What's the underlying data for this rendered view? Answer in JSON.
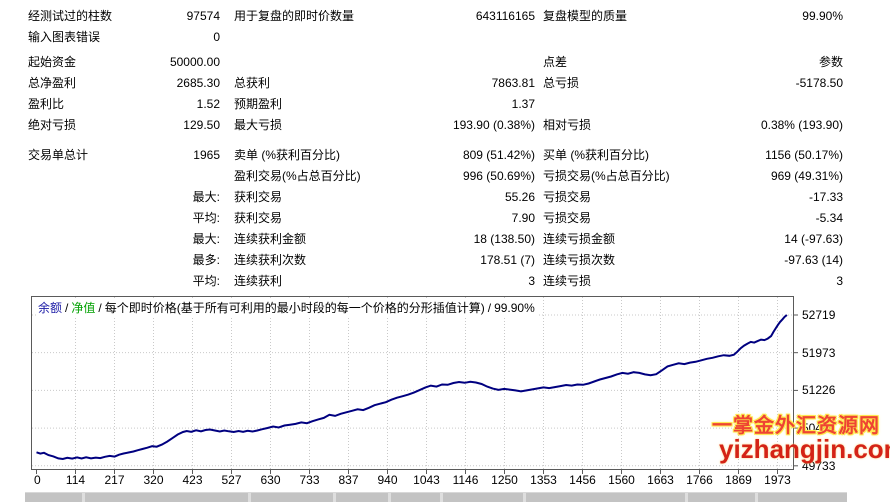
{
  "stats": {
    "rows": [
      {
        "a": "经测试过的柱数",
        "av": "97574",
        "b": "用于复盘的即时价数量",
        "bv": "643116165",
        "c": "复盘模型的质量",
        "cv": "99.90%",
        "gap": 0
      },
      {
        "a": "输入图表错误",
        "av": "0",
        "b": "",
        "bv": "",
        "c": "",
        "cv": "",
        "gap": 0
      },
      {
        "a": "起始资金",
        "av": "50000.00",
        "b": "",
        "bv": "",
        "c": "点差",
        "cv": "参数",
        "gap": 4
      },
      {
        "a": "总净盈利",
        "av": "2685.30",
        "b": "总获利",
        "bv": "7863.81",
        "c": "总亏损",
        "cv": "-5178.50",
        "gap": 0
      },
      {
        "a": "盈利比",
        "av": "1.52",
        "b": "预期盈利",
        "bv": "1.37",
        "c": "",
        "cv": "",
        "gap": 0
      },
      {
        "a": "绝对亏损",
        "av": "129.50",
        "b": "最大亏损",
        "bv": "193.90 (0.38%)",
        "c": "相对亏损",
        "cv": "0.38% (193.90)",
        "gap": 0
      },
      {
        "a": "交易单总计",
        "av": "1965",
        "b": "卖单 (%获利百分比)",
        "bv": "809 (51.42%)",
        "c": "买单 (%获利百分比)",
        "cv": "1156 (50.17%)",
        "gap": 9
      },
      {
        "a": "",
        "av": "",
        "b": "盈利交易(%占总百分比)",
        "bv": "996 (50.69%)",
        "c": "亏损交易(%占总百分比)",
        "cv": "969 (49.31%)",
        "gap": 0
      },
      {
        "a": "",
        "av": "最大:",
        "b": "获利交易",
        "bv": "55.26",
        "c": "亏损交易",
        "cv": "-17.33",
        "gap": 0
      },
      {
        "a": "",
        "av": "平均:",
        "b": "获利交易",
        "bv": "7.90",
        "c": "亏损交易",
        "cv": "-5.34",
        "gap": 0
      },
      {
        "a": "",
        "av": "最大:",
        "b": "连续获利金额",
        "bv": "18 (138.50)",
        "c": "连续亏损金额",
        "cv": "14 (-97.63)",
        "gap": 0
      },
      {
        "a": "",
        "av": "最多:",
        "b": "连续获利次数",
        "bv": "178.51 (7)",
        "c": "连续亏损次数",
        "cv": "-97.63 (14)",
        "gap": 0
      },
      {
        "a": "",
        "av": "平均:",
        "b": "连续获利",
        "bv": "3",
        "c": "连续亏损",
        "cv": "3",
        "gap": 0
      }
    ]
  },
  "chart": {
    "legend": {
      "balance": "余额",
      "equity": "净值",
      "desc": "每个即时价格(基于所有可利用的最小时段的每一个价格的分形插值计算)",
      "quality": "99.90%",
      "sep": "/",
      "balance_color": "#1a1aa6",
      "equity_color": "#00a000"
    },
    "watermark": {
      "line1": "一掌金外汇资源网",
      "line2": "yizhangjin.com",
      "color1": "#ee4433",
      "color2": "#d42316"
    }
  },
  "chart_data": {
    "type": "line",
    "title": "",
    "xlabel": "",
    "ylabel": "",
    "grid": "dotted",
    "legend_position": "top-left",
    "x_ticks": [
      0,
      114,
      217,
      320,
      423,
      527,
      630,
      733,
      837,
      940,
      1043,
      1146,
      1250,
      1353,
      1456,
      1560,
      1663,
      1766,
      1869,
      1973
    ],
    "y_ticks": [
      49733,
      50480,
      51226,
      51973,
      52719
    ],
    "xlim": [
      0,
      2040
    ],
    "ylim": [
      49650,
      53095
    ],
    "line_color": "#000080",
    "grid_color": "#c9c9c9",
    "border_color": "#5a5a5a",
    "series": [
      {
        "name": "余额",
        "points": [
          [
            0,
            50000
          ],
          [
            10,
            49975
          ],
          [
            20,
            49990
          ],
          [
            32,
            49945
          ],
          [
            45,
            49920
          ],
          [
            58,
            49880
          ],
          [
            70,
            49868
          ],
          [
            82,
            49892
          ],
          [
            95,
            49875
          ],
          [
            108,
            49900
          ],
          [
            120,
            49878
          ],
          [
            132,
            49902
          ],
          [
            145,
            49880
          ],
          [
            158,
            49896
          ],
          [
            170,
            49885
          ],
          [
            182,
            49912
          ],
          [
            195,
            49930
          ],
          [
            208,
            49916
          ],
          [
            220,
            49952
          ],
          [
            232,
            49976
          ],
          [
            245,
            49996
          ],
          [
            258,
            50016
          ],
          [
            270,
            50042
          ],
          [
            282,
            50066
          ],
          [
            295,
            50092
          ],
          [
            308,
            50122
          ],
          [
            320,
            50112
          ],
          [
            334,
            50152
          ],
          [
            348,
            50212
          ],
          [
            362,
            50282
          ],
          [
            376,
            50352
          ],
          [
            390,
            50402
          ],
          [
            400,
            50422
          ],
          [
            412,
            50406
          ],
          [
            425,
            50436
          ],
          [
            438,
            50416
          ],
          [
            450,
            50442
          ],
          [
            462,
            50452
          ],
          [
            475,
            50432
          ],
          [
            488,
            50412
          ],
          [
            500,
            50432
          ],
          [
            512,
            50416
          ],
          [
            525,
            50402
          ],
          [
            538,
            50422
          ],
          [
            550,
            50406
          ],
          [
            562,
            50426
          ],
          [
            575,
            50412
          ],
          [
            588,
            50432
          ],
          [
            600,
            50456
          ],
          [
            615,
            50482
          ],
          [
            630,
            50512
          ],
          [
            645,
            50492
          ],
          [
            660,
            50532
          ],
          [
            675,
            50546
          ],
          [
            690,
            50562
          ],
          [
            705,
            50592
          ],
          [
            720,
            50576
          ],
          [
            735,
            50616
          ],
          [
            750,
            50652
          ],
          [
            765,
            50682
          ],
          [
            780,
            50742
          ],
          [
            795,
            50722
          ],
          [
            810,
            50762
          ],
          [
            825,
            50792
          ],
          [
            840,
            50822
          ],
          [
            855,
            50852
          ],
          [
            870,
            50836
          ],
          [
            885,
            50882
          ],
          [
            900,
            50932
          ],
          [
            915,
            50962
          ],
          [
            930,
            50992
          ],
          [
            945,
            51042
          ],
          [
            960,
            51082
          ],
          [
            975,
            51112
          ],
          [
            990,
            51142
          ],
          [
            1005,
            51182
          ],
          [
            1020,
            51232
          ],
          [
            1035,
            51282
          ],
          [
            1050,
            51322
          ],
          [
            1065,
            51302
          ],
          [
            1080,
            51342
          ],
          [
            1095,
            51336
          ],
          [
            1110,
            51372
          ],
          [
            1125,
            51392
          ],
          [
            1140,
            51376
          ],
          [
            1155,
            51396
          ],
          [
            1170,
            51382
          ],
          [
            1185,
            51352
          ],
          [
            1200,
            51302
          ],
          [
            1215,
            51262
          ],
          [
            1230,
            51236
          ],
          [
            1245,
            51256
          ],
          [
            1260,
            51242
          ],
          [
            1275,
            51226
          ],
          [
            1290,
            51206
          ],
          [
            1305,
            51226
          ],
          [
            1320,
            51246
          ],
          [
            1335,
            51266
          ],
          [
            1350,
            51286
          ],
          [
            1365,
            51272
          ],
          [
            1380,
            51292
          ],
          [
            1395,
            51312
          ],
          [
            1410,
            51332
          ],
          [
            1425,
            51322
          ],
          [
            1440,
            51342
          ],
          [
            1455,
            51336
          ],
          [
            1470,
            51362
          ],
          [
            1485,
            51402
          ],
          [
            1500,
            51442
          ],
          [
            1515,
            51472
          ],
          [
            1530,
            51502
          ],
          [
            1545,
            51542
          ],
          [
            1560,
            51572
          ],
          [
            1575,
            51556
          ],
          [
            1590,
            51586
          ],
          [
            1605,
            51572
          ],
          [
            1620,
            51542
          ],
          [
            1635,
            51526
          ],
          [
            1650,
            51546
          ],
          [
            1665,
            51622
          ],
          [
            1680,
            51702
          ],
          [
            1695,
            51732
          ],
          [
            1710,
            51762
          ],
          [
            1725,
            51746
          ],
          [
            1740,
            51776
          ],
          [
            1755,
            51792
          ],
          [
            1770,
            51822
          ],
          [
            1785,
            51852
          ],
          [
            1800,
            51872
          ],
          [
            1815,
            51902
          ],
          [
            1830,
            51922
          ],
          [
            1845,
            51912
          ],
          [
            1857,
            51932
          ],
          [
            1866,
            51992
          ],
          [
            1875,
            52062
          ],
          [
            1884,
            52112
          ],
          [
            1893,
            52152
          ],
          [
            1902,
            52186
          ],
          [
            1911,
            52172
          ],
          [
            1920,
            52202
          ],
          [
            1929,
            52232
          ],
          [
            1938,
            52222
          ],
          [
            1947,
            52252
          ],
          [
            1956,
            52302
          ],
          [
            1962,
            52382
          ],
          [
            1968,
            52452
          ],
          [
            1974,
            52522
          ],
          [
            1980,
            52582
          ],
          [
            1986,
            52632
          ],
          [
            1992,
            52682
          ],
          [
            1998,
            52719
          ]
        ]
      }
    ]
  },
  "table_strip": {
    "dividers": [
      57,
      223,
      308,
      363,
      415,
      498,
      660,
      730
    ]
  }
}
